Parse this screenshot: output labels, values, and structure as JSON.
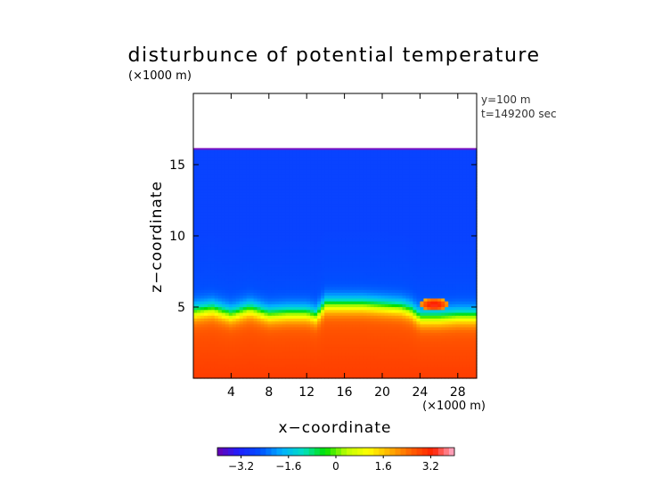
{
  "chart_data": {
    "type": "heatmap",
    "title": "disturbunce of potential temperature",
    "y_unit_label": "(×1000 m)",
    "x_unit_label": "(×1000 m)",
    "xlabel": "x−coordinate",
    "ylabel": "z−coordinate",
    "annotations": [
      "y=100 m",
      "t=149200 sec"
    ],
    "xlim": [
      0,
      30
    ],
    "ylim": [
      0,
      20
    ],
    "x_ticks": [
      4,
      8,
      12,
      16,
      20,
      24,
      28
    ],
    "y_ticks": [
      5,
      10,
      15
    ],
    "colorbar": {
      "range": [
        -4,
        4
      ],
      "ticks": [
        -3.2,
        -1.6,
        0,
        1.6,
        3.2
      ],
      "tick_labels": [
        "−3.2",
        "−1.6",
        "0",
        "1.6",
        "3.2"
      ],
      "colors": [
        "#6a00b0",
        "#2020ff",
        "#0050ff",
        "#00b0ff",
        "#00e0c0",
        "#00e000",
        "#c0ff00",
        "#ffff00",
        "#ffb000",
        "#ff6000",
        "#ff2000",
        "#ffb0d0"
      ]
    },
    "field": {
      "data_top_z": 16.1,
      "cold_anomaly": -2.6,
      "warm_anomaly": 2.6,
      "interface_profile": [
        [
          0,
          4.7
        ],
        [
          2,
          4.9
        ],
        [
          4,
          4.5
        ],
        [
          6,
          4.9
        ],
        [
          8,
          4.5
        ],
        [
          10,
          4.6
        ],
        [
          12,
          4.6
        ],
        [
          13,
          4.4
        ],
        [
          14,
          5.2
        ],
        [
          16,
          5.2
        ],
        [
          18,
          5.2
        ],
        [
          20,
          5.1
        ],
        [
          22,
          5.0
        ],
        [
          23,
          4.8
        ],
        [
          24,
          4.3
        ],
        [
          26,
          4.3
        ],
        [
          28,
          4.4
        ],
        [
          30,
          4.4
        ]
      ],
      "warm_bubble": {
        "x": 25.5,
        "z": 5.2,
        "anomaly": 3.4
      }
    }
  }
}
